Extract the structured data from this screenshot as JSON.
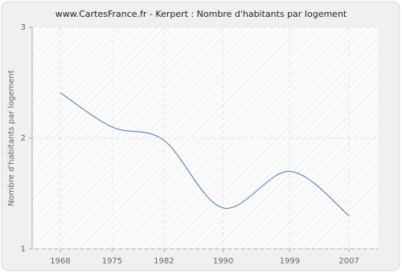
{
  "chart_data": {
    "type": "line",
    "title": "www.CartesFrance.fr - Kerpert : Nombre d'habitants par logement",
    "y_label": "Nombre d'habitants par logement",
    "x": [
      1968,
      1975,
      1982,
      1990,
      1999,
      2007
    ],
    "series": [
      {
        "name": "Kerpert",
        "color": "#4a78ad",
        "values": [
          2.41,
          2.1,
          1.98,
          1.37,
          1.7,
          1.3
        ]
      }
    ],
    "xlim": [
      1964.2,
      2010.9
    ],
    "xticks": [
      1968,
      1975,
      1982,
      1990,
      1999,
      2007
    ],
    "ylim": [
      1,
      3
    ],
    "yticks": [
      1,
      2,
      3
    ],
    "grid": true
  }
}
